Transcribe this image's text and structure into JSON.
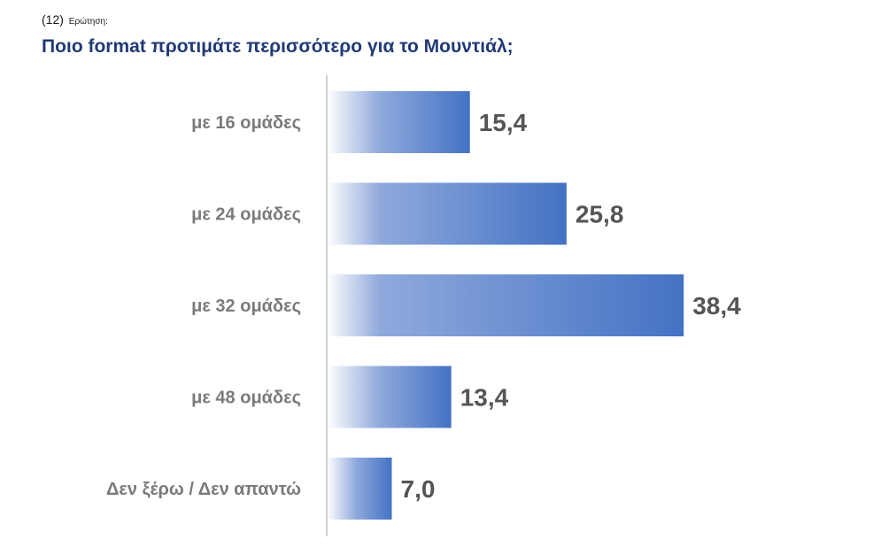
{
  "header": {
    "number": "(12)",
    "word": "Ερώτηση:",
    "question": "Ποιο format προτιμάτε περισσότερο για το Μουντιάλ;"
  },
  "colors": {
    "bar_start": "#ffffff",
    "bar_end": "#4472c4",
    "axis": "#d0d0d0",
    "title": "#1f3a75"
  },
  "chart_data": {
    "type": "bar",
    "orientation": "horizontal",
    "categories": [
      "με 16 ομάδες",
      "με 24 ομάδες",
      "με 32 ομάδες",
      "με 48 ομάδες",
      "Δεν ξέρω / Δεν απαντώ"
    ],
    "values": [
      15.4,
      25.8,
      38.4,
      13.4,
      7.0
    ],
    "value_labels": [
      "15,4",
      "25,8",
      "38,4",
      "13,4",
      "7,0"
    ],
    "grid": false,
    "legend": "none"
  }
}
